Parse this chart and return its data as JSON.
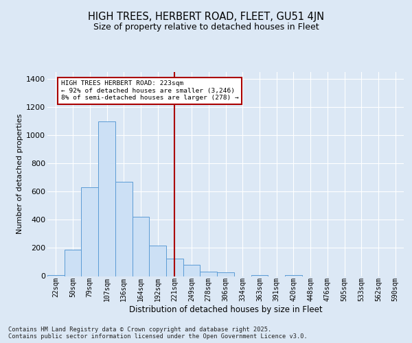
{
  "title": "HIGH TREES, HERBERT ROAD, FLEET, GU51 4JN",
  "subtitle": "Size of property relative to detached houses in Fleet",
  "xlabel": "Distribution of detached houses by size in Fleet",
  "ylabel": "Number of detached properties",
  "categories": [
    "22sqm",
    "50sqm",
    "79sqm",
    "107sqm",
    "136sqm",
    "164sqm",
    "192sqm",
    "221sqm",
    "249sqm",
    "278sqm",
    "306sqm",
    "334sqm",
    "363sqm",
    "391sqm",
    "420sqm",
    "448sqm",
    "476sqm",
    "505sqm",
    "533sqm",
    "562sqm",
    "590sqm"
  ],
  "values": [
    5,
    190,
    630,
    1100,
    670,
    420,
    215,
    125,
    80,
    30,
    25,
    0,
    5,
    0,
    5,
    0,
    0,
    0,
    0,
    0,
    0
  ],
  "bar_color": "#cce0f5",
  "bar_edge_color": "#5b9bd5",
  "vline_x_index": 7,
  "vline_color": "#aa0000",
  "annotation_text": "HIGH TREES HERBERT ROAD: 223sqm\n← 92% of detached houses are smaller (3,246)\n8% of semi-detached houses are larger (278) →",
  "annotation_box_color": "#ffffff",
  "annotation_box_edge": "#aa0000",
  "background_color": "#dce8f5",
  "plot_bg_color": "#dce8f5",
  "footer": "Contains HM Land Registry data © Crown copyright and database right 2025.\nContains public sector information licensed under the Open Government Licence v3.0.",
  "ylim": [
    0,
    1450
  ],
  "yticks": [
    0,
    200,
    400,
    600,
    800,
    1000,
    1200,
    1400
  ]
}
